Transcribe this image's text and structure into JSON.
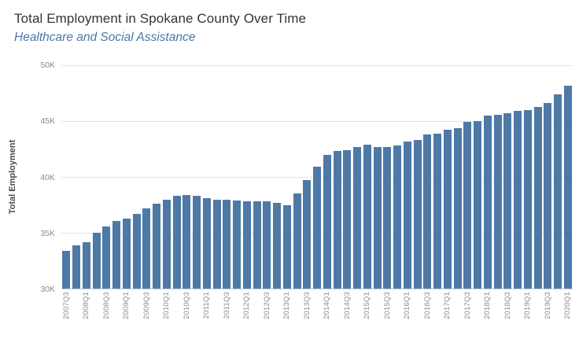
{
  "header": {
    "title": "Total Employment in Spokane County Over Time",
    "subtitle": "Healthcare and Social Assistance"
  },
  "chart_data": {
    "type": "bar",
    "title": "Total Employment in Spokane County Over Time",
    "subtitle": "Healthcare and Social Assistance",
    "xlabel": "",
    "ylabel": "Total Employment",
    "ylim": [
      30,
      50
    ],
    "grid": true,
    "bar_color": "#4e79a7",
    "yticks": [
      {
        "value": 30,
        "label": "30K"
      },
      {
        "value": 35,
        "label": "35K"
      },
      {
        "value": 40,
        "label": "40K"
      },
      {
        "value": 45,
        "label": "45K"
      },
      {
        "value": 50,
        "label": "50K"
      }
    ],
    "units": "thousands",
    "categories": [
      "2007Q3",
      "2007Q4",
      "2008Q1",
      "2008Q2",
      "2008Q3",
      "2008Q4",
      "2009Q1",
      "2009Q2",
      "2009Q3",
      "2009Q4",
      "2010Q1",
      "2010Q2",
      "2010Q3",
      "2010Q4",
      "2011Q1",
      "2011Q2",
      "2011Q3",
      "2011Q4",
      "2012Q1",
      "2012Q2",
      "2012Q3",
      "2012Q4",
      "2013Q1",
      "2013Q2",
      "2013Q3",
      "2013Q4",
      "2014Q1",
      "2014Q2",
      "2014Q3",
      "2014Q4",
      "2015Q1",
      "2015Q2",
      "2015Q3",
      "2015Q4",
      "2016Q1",
      "2016Q2",
      "2016Q3",
      "2016Q4",
      "2017Q1",
      "2017Q2",
      "2017Q3",
      "2017Q4",
      "2018Q1",
      "2018Q2",
      "2018Q3",
      "2018Q4",
      "2019Q1",
      "2019Q2",
      "2019Q3",
      "2019Q4",
      "2020Q1"
    ],
    "values": [
      33.4,
      33.9,
      34.2,
      35.0,
      35.6,
      36.1,
      36.3,
      36.7,
      37.2,
      37.6,
      38.0,
      38.3,
      38.4,
      38.3,
      38.1,
      38.0,
      38.0,
      37.9,
      37.8,
      37.8,
      37.8,
      37.7,
      37.5,
      38.5,
      39.7,
      40.9,
      42.0,
      42.3,
      42.4,
      42.7,
      42.9,
      42.7,
      42.7,
      42.8,
      43.2,
      43.3,
      43.8,
      43.9,
      44.2,
      44.4,
      44.9,
      45.0,
      45.5,
      45.6,
      45.7,
      45.9,
      46.0,
      46.3,
      46.6,
      47.4,
      48.2
    ],
    "x_label_every": 2,
    "legend": null
  }
}
